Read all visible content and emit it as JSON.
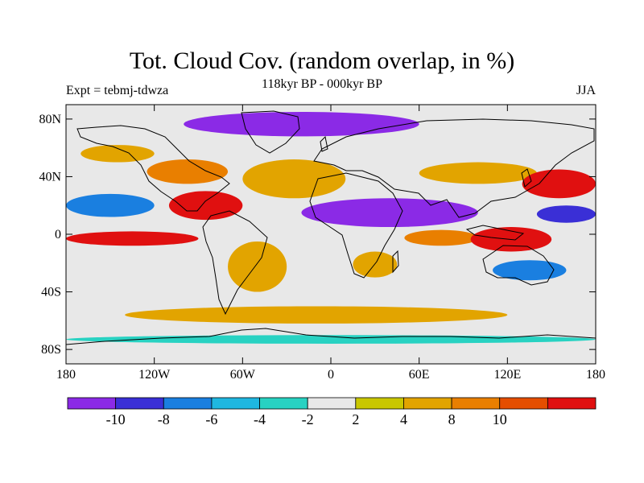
{
  "figure": {
    "title": "Tot. Cloud Cov. (random overlap, in %)",
    "subtitle": "118kyr BP - 000kyr BP",
    "left_label": "Expt = tebmj-tdwza",
    "right_label": "JJA"
  },
  "map": {
    "projection": "cylindrical-equidistant",
    "lon_range": [
      -180,
      180
    ],
    "lat_range": [
      -90,
      90
    ],
    "x_ticks": [
      {
        "value": -180,
        "label": "180"
      },
      {
        "value": -120,
        "label": "120W"
      },
      {
        "value": -60,
        "label": "60W"
      },
      {
        "value": 0,
        "label": "0"
      },
      {
        "value": 60,
        "label": "60E"
      },
      {
        "value": 120,
        "label": "120E"
      },
      {
        "value": 180,
        "label": "180"
      }
    ],
    "y_ticks": [
      {
        "value": 80,
        "label": "80N"
      },
      {
        "value": 40,
        "label": "40N"
      },
      {
        "value": 0,
        "label": "0"
      },
      {
        "value": -40,
        "label": "40S"
      },
      {
        "value": -80,
        "label": "80S"
      }
    ],
    "regions": [
      {
        "name": "arctic-decrease",
        "lon": [
          -100,
          60
        ],
        "lat": [
          68,
          85
        ],
        "anomaly": -11
      },
      {
        "name": "north-pacific-increase",
        "lon": [
          -170,
          -120
        ],
        "lat": [
          50,
          62
        ],
        "anomaly": 5
      },
      {
        "name": "north-america-increase",
        "lon": [
          -125,
          -70
        ],
        "lat": [
          35,
          52
        ],
        "anomaly": 9
      },
      {
        "name": "north-atlantic-increase",
        "lon": [
          -60,
          10
        ],
        "lat": [
          25,
          52
        ],
        "anomaly": 5
      },
      {
        "name": "central-america-increase",
        "lon": [
          -110,
          -60
        ],
        "lat": [
          10,
          30
        ],
        "anomaly": 11
      },
      {
        "name": "north-pacific-decrease",
        "lon": [
          -180,
          -120
        ],
        "lat": [
          12,
          28
        ],
        "anomaly": -8
      },
      {
        "name": "equatorial-pacific-increase",
        "lon": [
          -180,
          -90
        ],
        "lat": [
          -8,
          2
        ],
        "anomaly": 11
      },
      {
        "name": "sahel-india-decrease",
        "lon": [
          -20,
          100
        ],
        "lat": [
          5,
          25
        ],
        "anomaly": -12
      },
      {
        "name": "asia-mid-lat-increase",
        "lon": [
          60,
          140
        ],
        "lat": [
          35,
          50
        ],
        "anomaly": 7
      },
      {
        "name": "west-pacific-increase",
        "lon": [
          130,
          180
        ],
        "lat": [
          25,
          45
        ],
        "anomaly": 11
      },
      {
        "name": "west-pacific-decrease",
        "lon": [
          140,
          180
        ],
        "lat": [
          8,
          20
        ],
        "anomaly": -9
      },
      {
        "name": "indian-ocean-increase",
        "lon": [
          50,
          100
        ],
        "lat": [
          -8,
          3
        ],
        "anomaly": 9
      },
      {
        "name": "maritime-continent-increase",
        "lon": [
          95,
          150
        ],
        "lat": [
          -12,
          5
        ],
        "anomaly": 10
      },
      {
        "name": "south-america-increase",
        "lon": [
          -70,
          -30
        ],
        "lat": [
          -40,
          -5
        ],
        "anomaly": 6
      },
      {
        "name": "southern-africa-increase",
        "lon": [
          15,
          45
        ],
        "lat": [
          -30,
          -12
        ],
        "anomaly": 7
      },
      {
        "name": "australia-decrease",
        "lon": [
          110,
          160
        ],
        "lat": [
          -32,
          -18
        ],
        "anomaly": -7
      },
      {
        "name": "southern-ocean-increase",
        "lon": [
          -140,
          120
        ],
        "lat": [
          -62,
          -50
        ],
        "anomaly": 4
      },
      {
        "name": "antarctic-coast-decrease",
        "lon": [
          -180,
          180
        ],
        "lat": [
          -76,
          -70
        ],
        "anomaly": -4
      }
    ]
  },
  "colorbar": {
    "colors": [
      "#8b2ae6",
      "#3a2fd6",
      "#1a7fe0",
      "#1fb7e0",
      "#28d2c2",
      "#e8e8e8",
      "#c9c700",
      "#e2a400",
      "#e97f00",
      "#e54e00",
      "#e01010"
    ],
    "boundaries": [
      {
        "value": -10,
        "label": "-10"
      },
      {
        "value": -8,
        "label": "-8"
      },
      {
        "value": -6,
        "label": "-6"
      },
      {
        "value": -4,
        "label": "-4"
      },
      {
        "value": -2,
        "label": "-2"
      },
      {
        "value": 2,
        "label": "2"
      },
      {
        "value": 4,
        "label": "4"
      },
      {
        "value": 8,
        "label": "8"
      },
      {
        "value": 10,
        "label": "10"
      }
    ]
  }
}
